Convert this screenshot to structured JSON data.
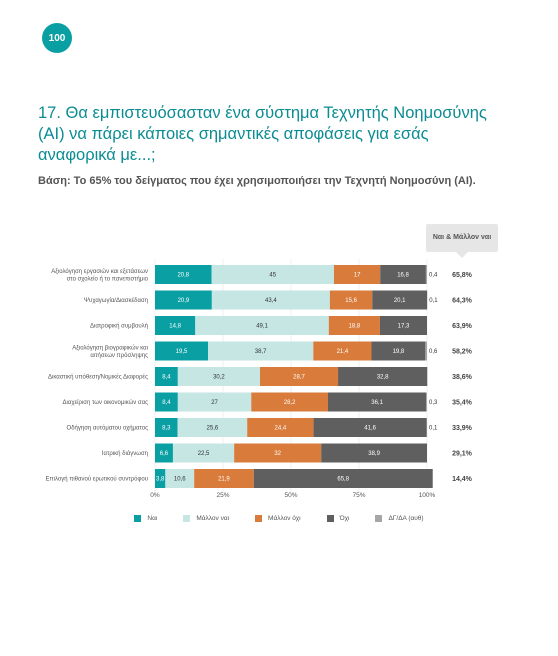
{
  "page_number": "100",
  "title": "17. Θα εμπιστευόσασταν ένα σύστημα Τεχνητής Νοημοσύνης (AI) να πάρει κάποιες σημαντικές αποφάσεις για εσάς αναφορικά με...;",
  "base": "Βάση: Το 65% του δείγματος που έχει χρησιμοποιήσει την Τεχνητή Νοημοσύνη (AI).",
  "callout_label": "Ναι & Μάλλον ναι",
  "colors": {
    "yes": "#0a9fa3",
    "rather_yes": "#c5e6e3",
    "rather_no": "#d97b3b",
    "no": "#5f5f5f",
    "dk_na": "#a6a6a6",
    "title": "#0a8c92"
  },
  "chart_data": {
    "type": "bar",
    "orientation": "horizontal",
    "stacked": true,
    "xlim": [
      0,
      100
    ],
    "x_ticks": [
      "0%",
      "25%",
      "50%",
      "75%",
      "100%"
    ],
    "categories": [
      "Αξιολόγηση εργασιών και εξετάσεων στο σχολείο ή το πανεπιστήμιο",
      "Ψυχαγωγία/Διασκέδαση",
      "Διατροφική συμβουλή",
      "Αξιολόγηση βιογραφικών και αιτήσεων πρόσληψης",
      "Δικαστική υπόθεση/Νομικές Διαφορές",
      "Διαχείριση των οικονομικών σας",
      "Οδήγηση αυτόματου οχήματος",
      "Ιατρική διάγνωση",
      "Επιλογή πιθανού ερωτικού συντρόφου"
    ],
    "series": [
      {
        "name": "Ναι",
        "color_key": "yes",
        "values": [
          20.8,
          20.9,
          14.8,
          19.5,
          8.4,
          8.4,
          8.3,
          6.6,
          3.8
        ]
      },
      {
        "name": "Μάλλον ναι",
        "color_key": "rather_yes",
        "values": [
          45,
          43.4,
          49.1,
          38.7,
          30.2,
          27,
          25.6,
          22.5,
          10.6
        ]
      },
      {
        "name": "Μάλλον όχι",
        "color_key": "rather_no",
        "values": [
          17,
          15.6,
          18.8,
          21.4,
          28.7,
          28.2,
          24.4,
          32,
          21.9
        ]
      },
      {
        "name": "Όχι",
        "color_key": "no",
        "values": [
          16.8,
          20.1,
          17.3,
          19.8,
          32.8,
          36.1,
          41.6,
          38.9,
          65.8
        ]
      },
      {
        "name": "ΔΓ/ΔΑ (αυθ)",
        "color_key": "dk_na",
        "values": [
          0.4,
          0.1,
          null,
          0.6,
          null,
          0.3,
          0.1,
          null,
          null
        ]
      }
    ],
    "totals_yes_rather_yes": [
      "65,8%",
      "64,3%",
      "63,9%",
      "58,2%",
      "38,6%",
      "35,4%",
      "33,9%",
      "29,1%",
      "14,4%"
    ]
  }
}
